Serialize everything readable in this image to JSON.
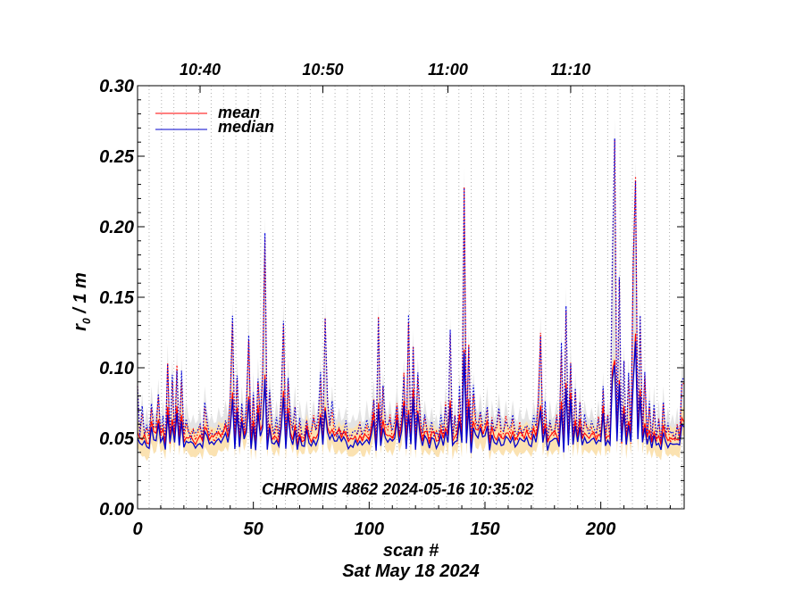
{
  "chart_data": {
    "type": "line",
    "xlabel": "scan #",
    "ylabel": "r",
    "ylabel_sub": "0",
    "ylabel_suffix": " / 1 m",
    "xlim": [
      0,
      236
    ],
    "ylim": [
      0.0,
      0.3
    ],
    "x_ticks": [
      "0",
      "50",
      "100",
      "150",
      "200"
    ],
    "y_ticks": [
      "0.00",
      "0.05",
      "0.10",
      "0.15",
      "0.20",
      "0.25",
      "0.30"
    ],
    "top_axis_ticks": [
      {
        "label": "10:40",
        "scan": 27
      },
      {
        "label": "10:50",
        "scan": 80
      },
      {
        "label": "11:00",
        "scan": 134
      },
      {
        "label": "11:10",
        "scan": 187
      }
    ],
    "annotation": "CHROMIS 4862 2024-05-16 10:35:02",
    "date_label": "Sat May 18 2024",
    "grid": "vertical dotted lines",
    "legend_position": "top-left",
    "series": [
      {
        "name": "mean",
        "color": "#ff0000"
      },
      {
        "name": "median",
        "color": "#0000cc"
      }
    ],
    "peaks": [
      [
        0,
        0.052,
        0.08
      ],
      [
        2,
        0.045,
        0.065
      ],
      [
        4,
        0.042,
        0.055
      ],
      [
        6,
        0.055,
        0.07
      ],
      [
        9,
        0.058,
        0.075
      ],
      [
        11,
        0.05,
        0.06
      ],
      [
        13,
        0.065,
        0.1
      ],
      [
        15,
        0.058,
        0.09
      ],
      [
        17,
        0.07,
        0.095
      ],
      [
        19,
        0.062,
        0.09
      ],
      [
        21,
        0.05,
        0.06
      ],
      [
        24,
        0.045,
        0.05
      ],
      [
        27,
        0.048,
        0.055
      ],
      [
        29,
        0.052,
        0.07
      ],
      [
        32,
        0.046,
        0.05
      ],
      [
        35,
        0.05,
        0.055
      ],
      [
        38,
        0.052,
        0.06
      ],
      [
        41,
        0.08,
        0.13
      ],
      [
        43,
        0.07,
        0.09
      ],
      [
        45,
        0.06,
        0.07
      ],
      [
        48,
        0.075,
        0.12
      ],
      [
        50,
        0.06,
        0.08
      ],
      [
        52,
        0.07,
        0.09
      ],
      [
        55,
        0.09,
        0.19
      ],
      [
        57,
        0.06,
        0.08
      ],
      [
        60,
        0.05,
        0.06
      ],
      [
        63,
        0.08,
        0.13
      ],
      [
        65,
        0.07,
        0.09
      ],
      [
        68,
        0.055,
        0.07
      ],
      [
        70,
        0.05,
        0.06
      ],
      [
        73,
        0.055,
        0.06
      ],
      [
        76,
        0.05,
        0.06
      ],
      [
        79,
        0.065,
        0.09
      ],
      [
        81,
        0.07,
        0.13
      ],
      [
        84,
        0.055,
        0.07
      ],
      [
        87,
        0.05,
        0.055
      ],
      [
        90,
        0.05,
        0.055
      ],
      [
        93,
        0.045,
        0.05
      ],
      [
        96,
        0.05,
        0.055
      ],
      [
        99,
        0.05,
        0.06
      ],
      [
        102,
        0.06,
        0.075
      ],
      [
        104,
        0.07,
        0.13
      ],
      [
        106,
        0.06,
        0.08
      ],
      [
        109,
        0.05,
        0.06
      ],
      [
        112,
        0.06,
        0.07
      ],
      [
        115,
        0.07,
        0.09
      ],
      [
        117,
        0.07,
        0.13
      ],
      [
        119,
        0.08,
        0.11
      ],
      [
        121,
        0.065,
        0.09
      ],
      [
        124,
        0.05,
        0.06
      ],
      [
        127,
        0.05,
        0.055
      ],
      [
        129,
        0.045,
        0.05
      ],
      [
        131,
        0.05,
        0.06
      ],
      [
        133,
        0.055,
        0.07
      ],
      [
        135,
        0.07,
        0.12
      ],
      [
        137,
        0.05,
        0.06
      ],
      [
        139,
        0.06,
        0.08
      ],
      [
        141,
        0.11,
        0.225
      ],
      [
        143,
        0.07,
        0.11
      ],
      [
        145,
        0.06,
        0.08
      ],
      [
        148,
        0.055,
        0.065
      ],
      [
        151,
        0.06,
        0.07
      ],
      [
        153,
        0.05,
        0.06
      ],
      [
        156,
        0.05,
        0.065
      ],
      [
        159,
        0.05,
        0.06
      ],
      [
        162,
        0.05,
        0.06
      ],
      [
        165,
        0.048,
        0.055
      ],
      [
        168,
        0.05,
        0.055
      ],
      [
        171,
        0.05,
        0.06
      ],
      [
        174,
        0.07,
        0.12
      ],
      [
        176,
        0.055,
        0.07
      ],
      [
        178,
        0.05,
        0.06
      ],
      [
        181,
        0.05,
        0.06
      ],
      [
        183,
        0.07,
        0.11
      ],
      [
        185,
        0.085,
        0.14
      ],
      [
        187,
        0.075,
        0.1
      ],
      [
        189,
        0.06,
        0.08
      ],
      [
        191,
        0.06,
        0.07
      ],
      [
        193,
        0.05,
        0.06
      ],
      [
        196,
        0.05,
        0.055
      ],
      [
        199,
        0.05,
        0.06
      ],
      [
        201,
        0.065,
        0.08
      ],
      [
        203,
        0.05,
        0.06
      ],
      [
        205,
        0.09,
        0.17
      ],
      [
        206,
        0.1,
        0.26
      ],
      [
        208,
        0.09,
        0.16
      ],
      [
        210,
        0.07,
        0.1
      ],
      [
        212,
        0.06,
        0.09
      ],
      [
        214,
        0.09,
        0.17
      ],
      [
        215,
        0.12,
        0.23
      ],
      [
        217,
        0.08,
        0.13
      ],
      [
        219,
        0.06,
        0.09
      ],
      [
        221,
        0.05,
        0.07
      ],
      [
        223,
        0.05,
        0.07
      ],
      [
        225,
        0.045,
        0.06
      ],
      [
        227,
        0.055,
        0.07
      ],
      [
        229,
        0.045,
        0.055
      ],
      [
        231,
        0.045,
        0.05
      ],
      [
        233,
        0.045,
        0.055
      ],
      [
        235,
        0.06,
        0.085
      ]
    ]
  }
}
